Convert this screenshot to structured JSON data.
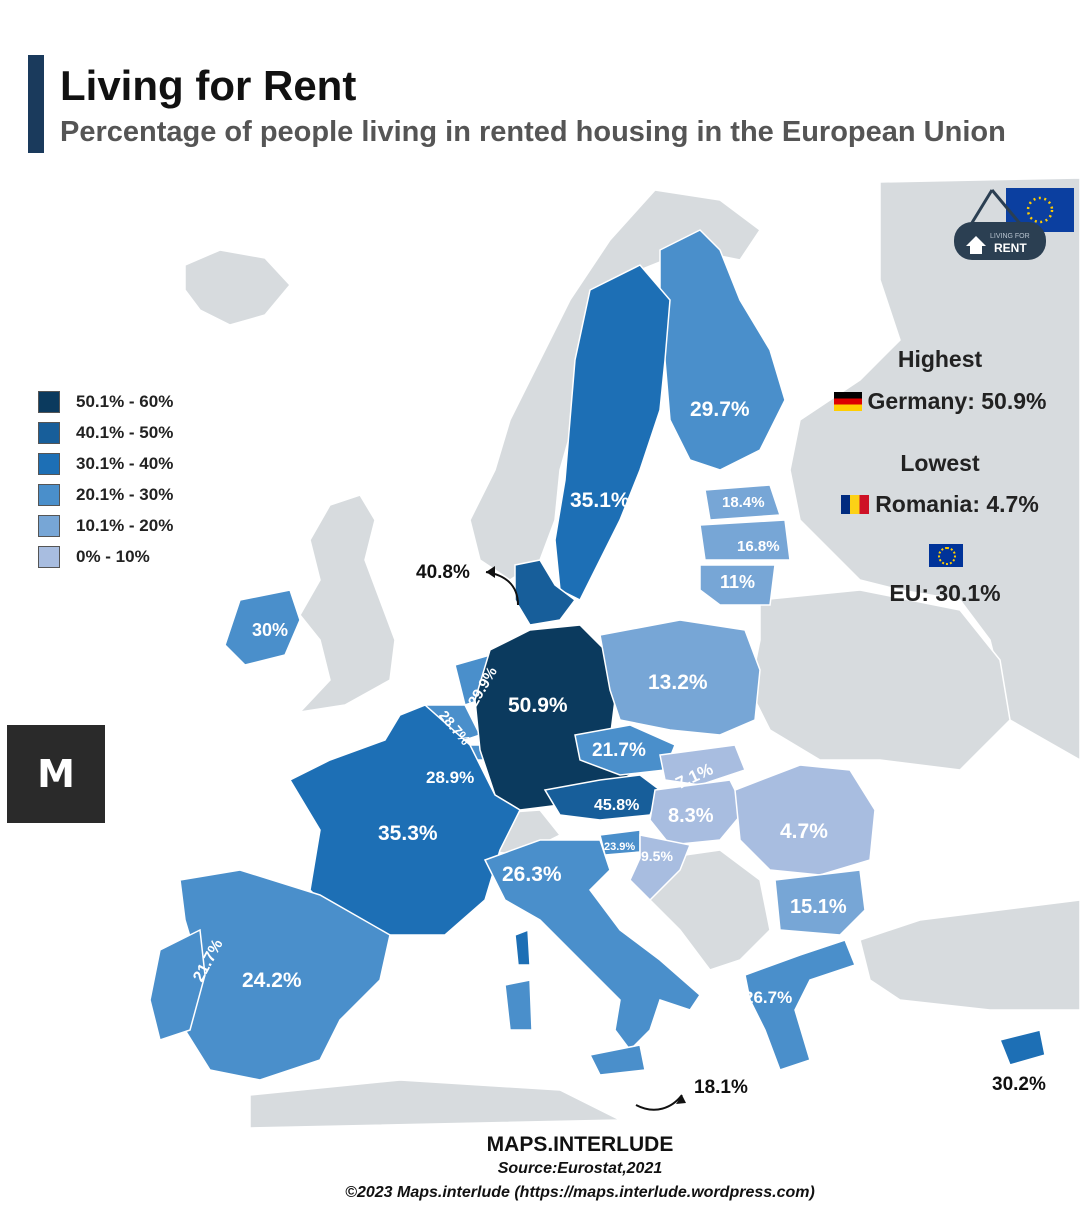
{
  "title": "Living for Rent",
  "subtitle": "Percentage of people living in rented housing in the European Union",
  "legend": [
    {
      "label": "50.1% - 60%",
      "color": "#0b3a5e"
    },
    {
      "label": "40.1% - 50%",
      "color": "#175e9a"
    },
    {
      "label": "30.1% - 40%",
      "color": "#1d6fb5"
    },
    {
      "label": "20.1% - 30%",
      "color": "#4a8fcb"
    },
    {
      "label": "10.1% - 20%",
      "color": "#77a6d6"
    },
    {
      "label": "0% - 10%",
      "color": "#a8bde0"
    }
  ],
  "highlights": {
    "highest_heading": "Highest",
    "highest_value": "Germany: 50.9%",
    "lowest_heading": "Lowest",
    "lowest_value": "Romania: 4.7%",
    "eu_value": "EU: 30.1%"
  },
  "countries": [
    {
      "name": "Germany",
      "value": "50.9%",
      "band": "50.1% - 60%"
    },
    {
      "name": "Austria",
      "value": "45.8%",
      "band": "40.1% - 50%"
    },
    {
      "name": "Denmark",
      "value": "40.8%",
      "band": "40.1% - 50%"
    },
    {
      "name": "France",
      "value": "35.3%",
      "band": "30.1% - 40%"
    },
    {
      "name": "Sweden",
      "value": "35.1%",
      "band": "30.1% - 40%"
    },
    {
      "name": "Cyprus",
      "value": "30.2%",
      "band": "30.1% - 40%"
    },
    {
      "name": "Ireland",
      "value": "30%",
      "band": "20.1% - 30%"
    },
    {
      "name": "Netherlands",
      "value": "29.9%",
      "band": "20.1% - 30%"
    },
    {
      "name": "Finland",
      "value": "29.7%",
      "band": "20.1% - 30%"
    },
    {
      "name": "Luxembourg",
      "value": "28.9%",
      "band": "20.1% - 30%"
    },
    {
      "name": "Belgium",
      "value": "28.7%",
      "band": "20.1% - 30%"
    },
    {
      "name": "Greece",
      "value": "26.7%",
      "band": "20.1% - 30%"
    },
    {
      "name": "Italy",
      "value": "26.3%",
      "band": "20.1% - 30%"
    },
    {
      "name": "Spain",
      "value": "24.2%",
      "band": "20.1% - 30%"
    },
    {
      "name": "Slovenia",
      "value": "23.9%",
      "band": "20.1% - 30%"
    },
    {
      "name": "Portugal",
      "value": "21.7%",
      "band": "20.1% - 30%"
    },
    {
      "name": "Czechia",
      "value": "21.7%",
      "band": "20.1% - 30%"
    },
    {
      "name": "Estonia",
      "value": "18.4%",
      "band": "10.1% - 20%"
    },
    {
      "name": "Malta",
      "value": "18.1%",
      "band": "10.1% - 20%"
    },
    {
      "name": "Latvia",
      "value": "16.8%",
      "band": "10.1% - 20%"
    },
    {
      "name": "Bulgaria",
      "value": "15.1%",
      "band": "10.1% - 20%"
    },
    {
      "name": "Poland",
      "value": "13.2%",
      "band": "10.1% - 20%"
    },
    {
      "name": "Lithuania",
      "value": "11%",
      "band": "10.1% - 20%"
    },
    {
      "name": "Croatia",
      "value": "9.5%",
      "band": "0% - 10%"
    },
    {
      "name": "Hungary",
      "value": "8.3%",
      "band": "0% - 10%"
    },
    {
      "name": "Slovakia",
      "value": "7.1%",
      "band": "0% - 10%"
    },
    {
      "name": "Romania",
      "value": "4.7%",
      "band": "0% - 10%"
    }
  ],
  "badge": {
    "small_text": "LIVING FOR",
    "main_text": "RENT"
  },
  "logo_letter": "M",
  "footer": {
    "brand": "MAPS.INTERLUDE",
    "source": "Source:Eurostat,2021",
    "copyright": "©2023 Maps.interlude (https://maps.interlude.wordpress.com)"
  }
}
